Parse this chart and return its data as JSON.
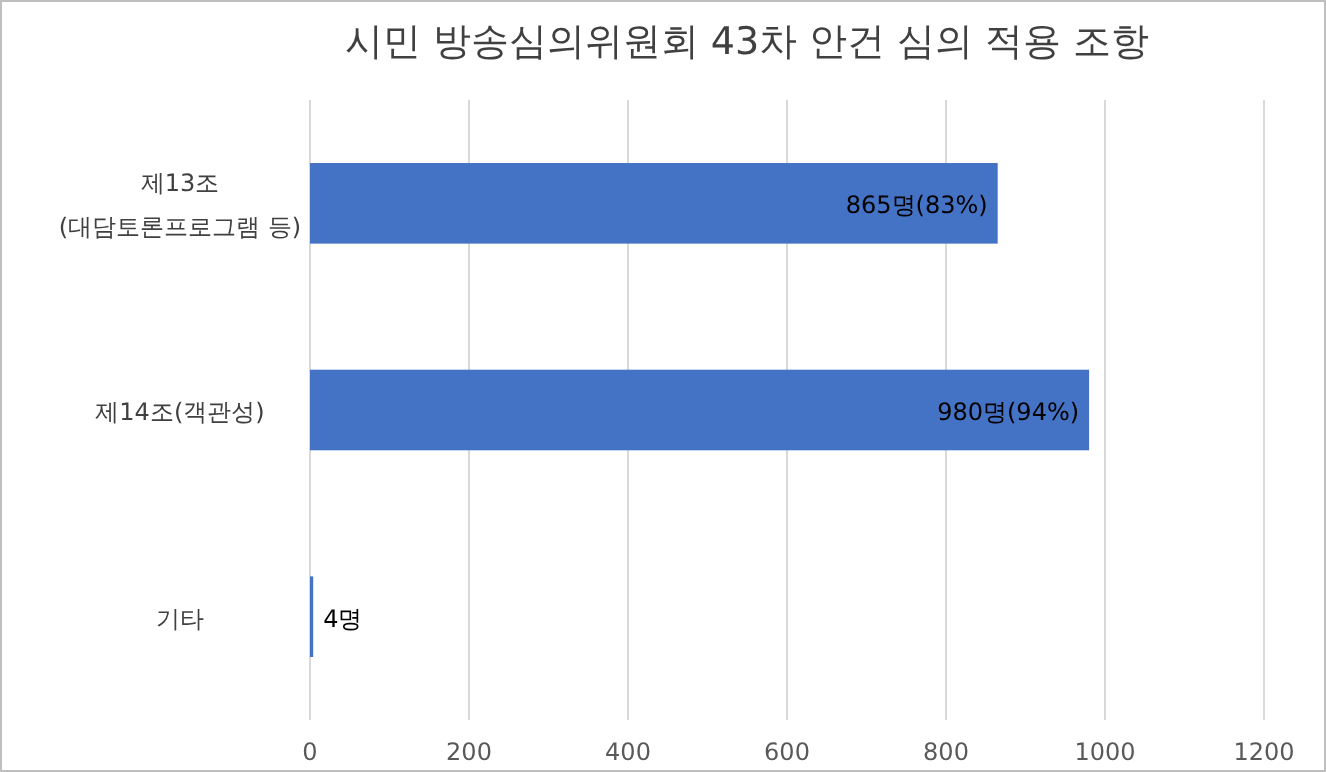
{
  "chart_data": {
    "type": "bar",
    "orientation": "horizontal",
    "title": "시민 방송심의위원회 43차 안건 심의 적용 조항",
    "categories": [
      "제13조 (대담토론프로그램 등)",
      "제14조(객관성)",
      "기타"
    ],
    "values": [
      865,
      980,
      4
    ],
    "value_labels": [
      "865명(83%)",
      "980명(94%)",
      "4명"
    ],
    "color": "#4472c4",
    "xlim": [
      0,
      1200
    ],
    "xticks": [
      0,
      200,
      400,
      600,
      800,
      1000,
      1200
    ],
    "grid": "x"
  }
}
